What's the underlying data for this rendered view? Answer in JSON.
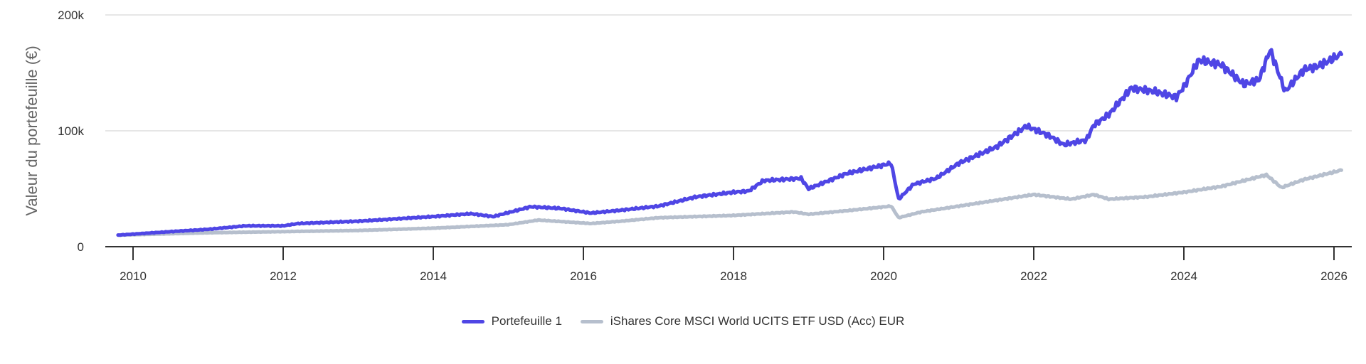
{
  "chart_data": {
    "type": "line",
    "ylabel": "Valeur du portefeuille (€)",
    "xlabel": "",
    "ylim": [
      0,
      200000
    ],
    "xlim": [
      2009.7,
      2026.25
    ],
    "yticks": [
      {
        "value": 0,
        "label": "0"
      },
      {
        "value": 100000,
        "label": "100k"
      },
      {
        "value": 200000,
        "label": "200k"
      }
    ],
    "xticks": [
      "2010",
      "2012",
      "2014",
      "2016",
      "2018",
      "2020",
      "2022",
      "2024",
      "2026"
    ],
    "grid": "horizontal",
    "legend": "bottom",
    "series": [
      {
        "name": "Portefeuille 1",
        "color": "#4f46e5",
        "x": [
          2009.8,
          2010.5,
          2011,
          2011.5,
          2012,
          2012.2,
          2013,
          2013.5,
          2014,
          2014.5,
          2014.8,
          2015.3,
          2015.7,
          2016.1,
          2016.5,
          2017,
          2017.5,
          2018,
          2018.2,
          2018.4,
          2018.9,
          2019,
          2019.5,
          2020.1,
          2020.2,
          2020.4,
          2020.7,
          2021,
          2021.5,
          2021.9,
          2022.2,
          2022.4,
          2022.7,
          2022.8,
          2023.0,
          2023.3,
          2023.6,
          2023.9,
          2024.0,
          2024.2,
          2024.5,
          2024.8,
          2025.0,
          2025.15,
          2025.35,
          2025.6,
          2025.8,
          2026.1
        ],
        "y": [
          10000,
          13000,
          15000,
          18000,
          18000,
          20000,
          22000,
          24000,
          26000,
          28500,
          26000,
          34500,
          33000,
          29000,
          31500,
          35000,
          43000,
          47000,
          48000,
          57000,
          59000,
          50000,
          63000,
          72000,
          41000,
          54000,
          59000,
          72000,
          86000,
          104000,
          96000,
          88000,
          92000,
          105000,
          114000,
          137000,
          134000,
          129000,
          138000,
          161000,
          157000,
          140000,
          144000,
          170000,
          134000,
          153000,
          156000,
          166000
        ]
      },
      {
        "name": "iShares Core MSCI World UCITS ETF USD (Acc) EUR",
        "color": "#b6bfcd",
        "x": [
          2009.8,
          2011,
          2012,
          2013,
          2014,
          2015,
          2015.4,
          2016.1,
          2016.5,
          2017,
          2018,
          2018.8,
          2019,
          2019.5,
          2020.1,
          2020.2,
          2020.5,
          2021,
          2021.5,
          2022,
          2022.5,
          2022.8,
          2023,
          2023.5,
          2024,
          2024.5,
          2025.1,
          2025.3,
          2025.6,
          2026.1
        ],
        "y": [
          10000,
          12000,
          13000,
          14000,
          16000,
          19000,
          23000,
          20000,
          22000,
          25000,
          27000,
          30000,
          28000,
          31000,
          35000,
          25000,
          30000,
          35000,
          40000,
          45000,
          41000,
          45000,
          41000,
          43000,
          47000,
          52000,
          62000,
          51000,
          58000,
          66000
        ]
      }
    ]
  }
}
